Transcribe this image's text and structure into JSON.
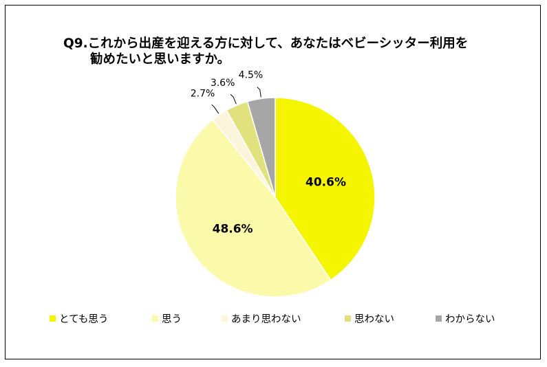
{
  "title_line1": "Q9.これから出産を迎える方に対して、あなたはベビーシッター利用を",
  "title_line2": "勧めたいと思いますか。",
  "chart_data": {
    "type": "pie",
    "categories": [
      "とても思う",
      "思う",
      "あまり思わない",
      "思わない",
      "わからない"
    ],
    "values": [
      40.6,
      48.6,
      2.7,
      3.6,
      4.5
    ],
    "labels": [
      "40.6%",
      "48.6%",
      "2.7%",
      "3.6%",
      "4.5%"
    ],
    "colors": [
      "#f5f500",
      "#fafaaa",
      "#fcf5dc",
      "#e1e17d",
      "#a6a6a6"
    ],
    "start_angle": "12 o'clock",
    "direction": "clockwise",
    "legend_position": "bottom"
  }
}
